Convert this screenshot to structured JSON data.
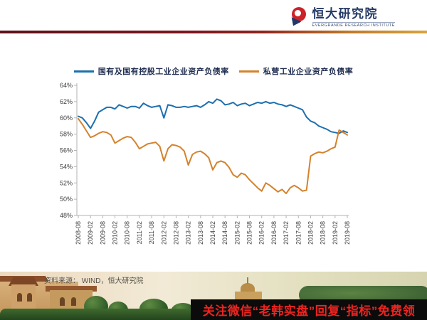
{
  "header": {
    "logo_cn": "恒大研究院",
    "logo_en": "EVERGRANDE RESEARCH INSTITUTE",
    "logo_colors": {
      "icon_red": "#cc2229",
      "navy": "#253a66"
    },
    "divider_gradient": [
      "#5f1119",
      "#7c161e",
      "#d9a43c"
    ]
  },
  "chart_data": {
    "type": "line",
    "title": "",
    "xlabel": "",
    "ylabel": "",
    "grid": false,
    "legend_position": "top",
    "ylim": [
      48,
      64
    ],
    "y_ticks": [
      64,
      62,
      60,
      58,
      56,
      54,
      52,
      50,
      48
    ],
    "y_tick_suffix": "%",
    "x_start": "2008-08",
    "x_end": "2019-08",
    "x_tick_labels": [
      "2008-08",
      "2009-02",
      "2009-08",
      "2010-02",
      "2010-08",
      "2011-02",
      "2011-08",
      "2012-02",
      "2012-08",
      "2013-02",
      "2013-08",
      "2014-02",
      "2014-08",
      "2015-02",
      "2015-08",
      "2016-02",
      "2016-08",
      "2017-02",
      "2017-08",
      "2018-02",
      "2018-08",
      "2019-02",
      "2019-08"
    ],
    "x_tick_step_months": 6,
    "value_step_months": 2,
    "series": [
      {
        "name": "国有及国有控股工业企业资产负债率",
        "color": "#1c6fae",
        "values": [
          60.2,
          60.0,
          59.4,
          58.7,
          59.6,
          60.7,
          61.0,
          61.3,
          61.3,
          61.1,
          61.6,
          61.4,
          61.2,
          61.4,
          61.4,
          61.2,
          61.8,
          61.5,
          61.3,
          61.4,
          61.5,
          60.0,
          61.6,
          61.5,
          61.3,
          61.3,
          61.4,
          61.3,
          61.4,
          61.5,
          61.3,
          61.6,
          62.0,
          61.8,
          62.3,
          62.1,
          61.6,
          61.7,
          61.9,
          61.5,
          61.7,
          61.8,
          61.5,
          61.7,
          61.9,
          61.8,
          62.0,
          61.8,
          61.9,
          61.7,
          61.6,
          61.4,
          61.6,
          61.4,
          61.2,
          61.0,
          60.1,
          59.6,
          59.4,
          59.0,
          58.8,
          58.6,
          58.3,
          58.2,
          58.1,
          58.4,
          58.2
        ]
      },
      {
        "name": "私营工业企业资产负债率",
        "color": "#d4822c",
        "values": [
          59.9,
          59.2,
          58.4,
          57.6,
          57.8,
          58.1,
          58.3,
          58.2,
          57.9,
          56.9,
          57.2,
          57.5,
          57.7,
          57.6,
          57.0,
          56.2,
          56.5,
          56.8,
          56.9,
          57.0,
          56.5,
          54.7,
          56.2,
          56.7,
          56.6,
          56.4,
          55.9,
          54.2,
          55.5,
          55.8,
          55.9,
          55.6,
          55.1,
          53.6,
          54.5,
          54.7,
          54.5,
          53.9,
          53.0,
          52.7,
          53.2,
          53.0,
          52.4,
          51.9,
          51.4,
          51.0,
          52.0,
          51.7,
          51.3,
          50.9,
          51.2,
          50.7,
          51.4,
          51.7,
          51.4,
          51.0,
          51.1,
          55.3,
          55.6,
          55.8,
          55.7,
          55.9,
          56.2,
          56.4,
          58.5,
          58.2,
          57.9
        ]
      }
    ]
  },
  "footer": {
    "source": "资料来源：  WIND，恒大研究院"
  },
  "banner": {
    "text": "关注微信“老韩实盘”回复“指标”免费领",
    "text_color": "#ee2420",
    "background": "#0b0b0b"
  }
}
